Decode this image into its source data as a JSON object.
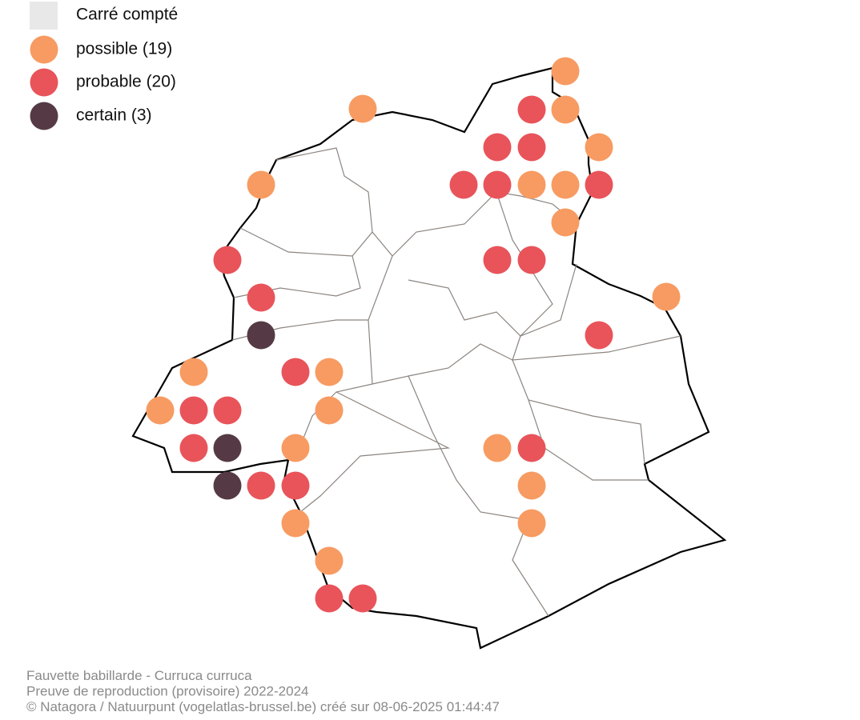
{
  "legend": {
    "items": [
      {
        "label": "Carré compté",
        "color": "#e8e8e8"
      },
      {
        "label": "possible (19)",
        "color": "#f79b62"
      },
      {
        "label": "probable (20)",
        "color": "#e8545a"
      },
      {
        "label": "certain (3)",
        "color": "#553a45"
      }
    ]
  },
  "footer": {
    "lines": [
      "Fauvette babillarde - Curruca curruca",
      "Preuve de reproduction (provisoire) 2022-2024",
      "© Natagora / Natuurpunt (vogelatlas-brussel.be) créé sur 08-06-2025 01:44:47"
    ]
  }
}
